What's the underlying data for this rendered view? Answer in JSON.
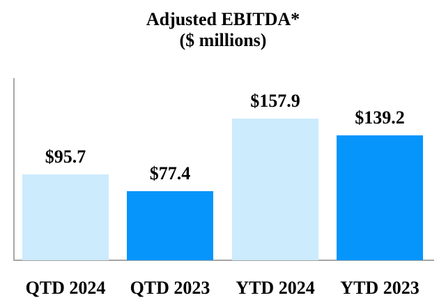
{
  "title": {
    "line1": "Adjusted EBITDA*",
    "line2": "($ millions)"
  },
  "chart_data": {
    "type": "bar",
    "title": "Adjusted EBITDA* ($ millions)",
    "categories": [
      "QTD 2024",
      "QTD 2023",
      "YTD 2024",
      "YTD 2023"
    ],
    "values": [
      95.7,
      77.4,
      157.9,
      139.2
    ],
    "value_labels": [
      "$95.7",
      "$77.4",
      "$157.9",
      "$139.2"
    ],
    "bar_colors": [
      "#CCEBFC",
      "#0695FB",
      "#CCEBFC",
      "#0695FB"
    ],
    "xlabel": "",
    "ylabel": "",
    "ylim": [
      0,
      200
    ],
    "grid": false,
    "legend": "none"
  },
  "colors": {
    "light_blue": "#CCEBFC",
    "bright_blue": "#0695FB",
    "axis_gray": "#A6A6A6",
    "text": "#000000"
  }
}
